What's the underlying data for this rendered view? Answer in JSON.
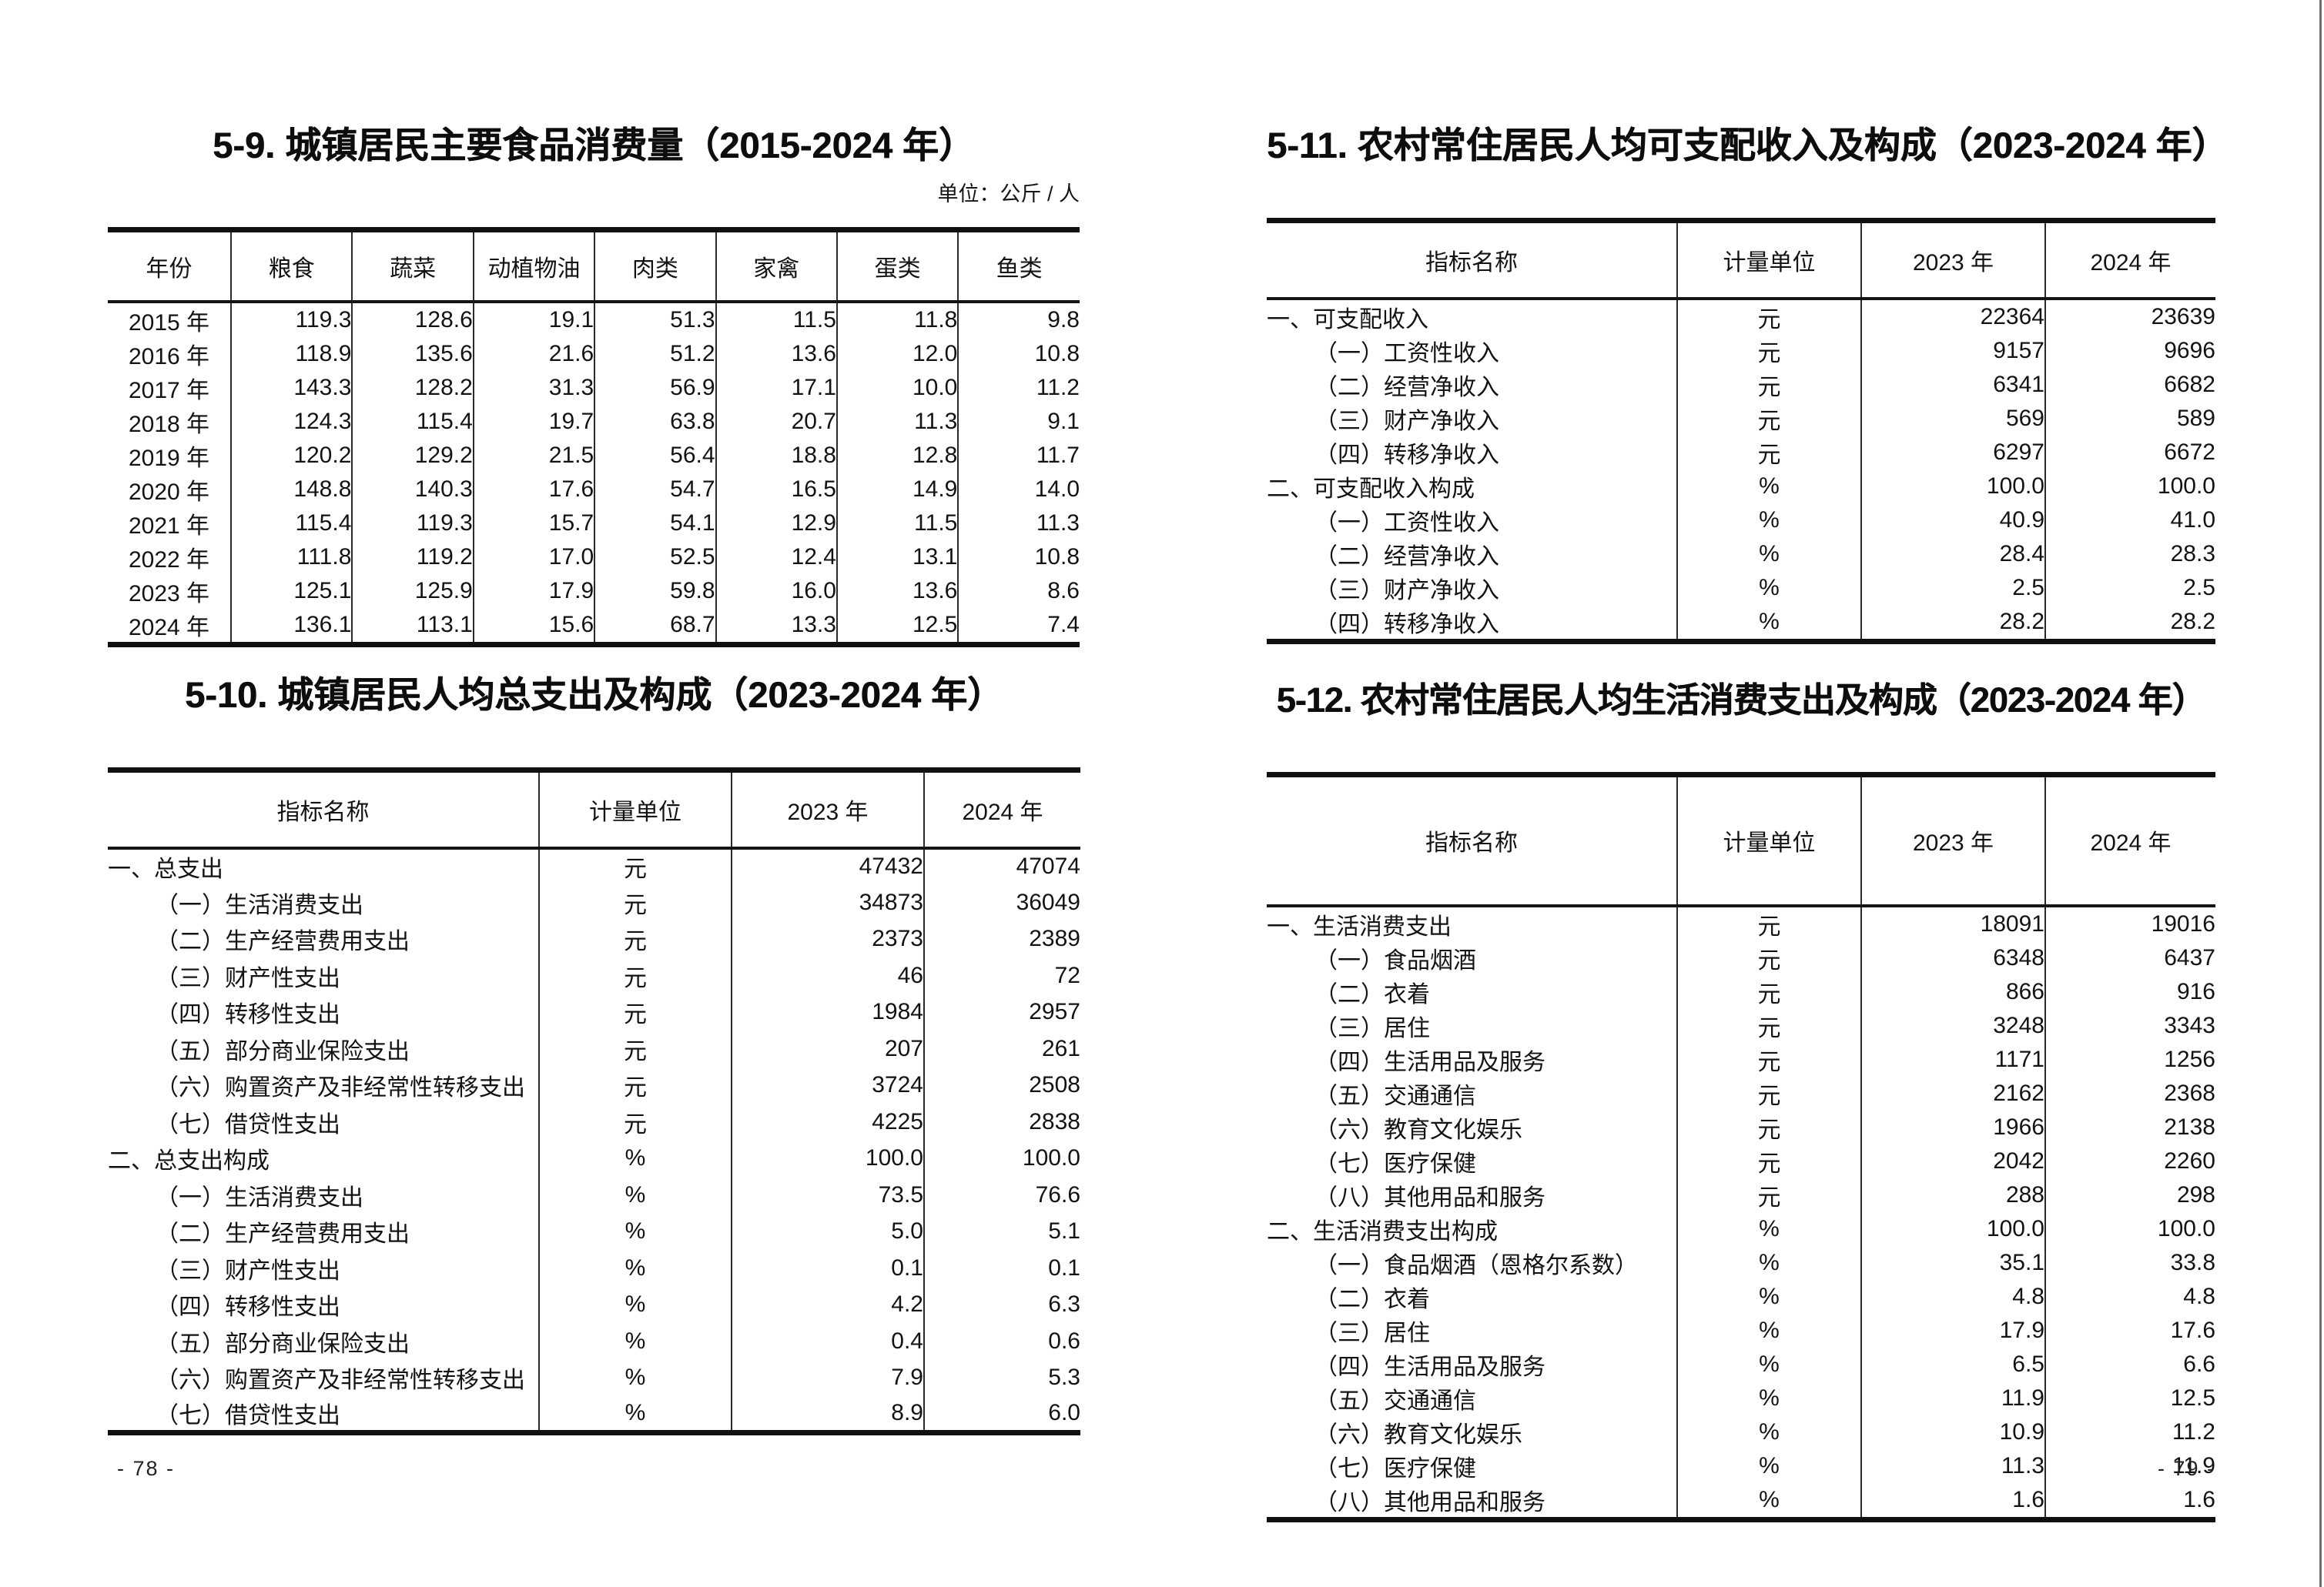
{
  "left_page": {
    "page_number": "- 78 -",
    "food_table": {
      "title": "5-9. 城镇居民主要食品消费量（2015-2024 年）",
      "unit_note": "单位：公斤 / 人",
      "columns": [
        "年份",
        "粮食",
        "蔬菜",
        "动植物油",
        "肉类",
        "家禽",
        "蛋类",
        "鱼类"
      ],
      "rows": [
        [
          "2015 年",
          "119.3",
          "128.6",
          "19.1",
          "51.3",
          "11.5",
          "11.8",
          "9.8"
        ],
        [
          "2016 年",
          "118.9",
          "135.6",
          "21.6",
          "51.2",
          "13.6",
          "12.0",
          "10.8"
        ],
        [
          "2017 年",
          "143.3",
          "128.2",
          "31.3",
          "56.9",
          "17.1",
          "10.0",
          "11.2"
        ],
        [
          "2018 年",
          "124.3",
          "115.4",
          "19.7",
          "63.8",
          "20.7",
          "11.3",
          "9.1"
        ],
        [
          "2019 年",
          "120.2",
          "129.2",
          "21.5",
          "56.4",
          "18.8",
          "12.8",
          "11.7"
        ],
        [
          "2020 年",
          "148.8",
          "140.3",
          "17.6",
          "54.7",
          "16.5",
          "14.9",
          "14.0"
        ],
        [
          "2021 年",
          "115.4",
          "119.3",
          "15.7",
          "54.1",
          "12.9",
          "11.5",
          "11.3"
        ],
        [
          "2022 年",
          "111.8",
          "119.2",
          "17.0",
          "52.5",
          "12.4",
          "13.1",
          "10.8"
        ],
        [
          "2023 年",
          "125.1",
          "125.9",
          "17.9",
          "59.8",
          "16.0",
          "13.6",
          "8.6"
        ],
        [
          "2024 年",
          "136.1",
          "113.1",
          "15.6",
          "68.7",
          "13.3",
          "12.5",
          "7.4"
        ]
      ]
    },
    "expenditure_table": {
      "title": "5-10. 城镇居民人均总支出及构成（2023-2024 年）",
      "columns": [
        "指标名称",
        "计量单位",
        "2023 年",
        "2024 年"
      ],
      "rows": [
        {
          "label": "一、总支出",
          "indent": 0,
          "unit": "元",
          "y2023": "47432",
          "y2024": "47074"
        },
        {
          "label": "（一）生活消费支出",
          "indent": 1,
          "unit": "元",
          "y2023": "34873",
          "y2024": "36049"
        },
        {
          "label": "（二）生产经营费用支出",
          "indent": 1,
          "unit": "元",
          "y2023": "2373",
          "y2024": "2389"
        },
        {
          "label": "（三）财产性支出",
          "indent": 1,
          "unit": "元",
          "y2023": "46",
          "y2024": "72"
        },
        {
          "label": "（四）转移性支出",
          "indent": 1,
          "unit": "元",
          "y2023": "1984",
          "y2024": "2957"
        },
        {
          "label": "（五）部分商业保险支出",
          "indent": 1,
          "unit": "元",
          "y2023": "207",
          "y2024": "261"
        },
        {
          "label": "（六）购置资产及非经常性转移支出",
          "indent": 1,
          "unit": "元",
          "y2023": "3724",
          "y2024": "2508"
        },
        {
          "label": "（七）借贷性支出",
          "indent": 1,
          "unit": "元",
          "y2023": "4225",
          "y2024": "2838"
        },
        {
          "label": "二、总支出构成",
          "indent": 0,
          "unit": "%",
          "y2023": "100.0",
          "y2024": "100.0"
        },
        {
          "label": "（一）生活消费支出",
          "indent": 1,
          "unit": "%",
          "y2023": "73.5",
          "y2024": "76.6"
        },
        {
          "label": "（二）生产经营费用支出",
          "indent": 1,
          "unit": "%",
          "y2023": "5.0",
          "y2024": "5.1"
        },
        {
          "label": "（三）财产性支出",
          "indent": 1,
          "unit": "%",
          "y2023": "0.1",
          "y2024": "0.1"
        },
        {
          "label": "（四）转移性支出",
          "indent": 1,
          "unit": "%",
          "y2023": "4.2",
          "y2024": "6.3"
        },
        {
          "label": "（五）部分商业保险支出",
          "indent": 1,
          "unit": "%",
          "y2023": "0.4",
          "y2024": "0.6"
        },
        {
          "label": "（六）购置资产及非经常性转移支出",
          "indent": 1,
          "unit": "%",
          "y2023": "7.9",
          "y2024": "5.3"
        },
        {
          "label": "（七）借贷性支出",
          "indent": 1,
          "unit": "%",
          "y2023": "8.9",
          "y2024": "6.0"
        }
      ]
    }
  },
  "right_page": {
    "page_number": "- 79 -",
    "income_table": {
      "title": "5-11. 农村常住居民人均可支配收入及构成（2023-2024 年）",
      "columns": [
        "指标名称",
        "计量单位",
        "2023 年",
        "2024 年"
      ],
      "rows": [
        {
          "label": "一、可支配收入",
          "indent": 0,
          "unit": "元",
          "y2023": "22364",
          "y2024": "23639"
        },
        {
          "label": "（一）工资性收入",
          "indent": 1,
          "unit": "元",
          "y2023": "9157",
          "y2024": "9696"
        },
        {
          "label": "（二）经营净收入",
          "indent": 1,
          "unit": "元",
          "y2023": "6341",
          "y2024": "6682"
        },
        {
          "label": "（三）财产净收入",
          "indent": 1,
          "unit": "元",
          "y2023": "569",
          "y2024": "589"
        },
        {
          "label": "（四）转移净收入",
          "indent": 1,
          "unit": "元",
          "y2023": "6297",
          "y2024": "6672"
        },
        {
          "label": "二、可支配收入构成",
          "indent": 0,
          "unit": "%",
          "y2023": "100.0",
          "y2024": "100.0"
        },
        {
          "label": "（一）工资性收入",
          "indent": 1,
          "unit": "%",
          "y2023": "40.9",
          "y2024": "41.0"
        },
        {
          "label": "（二）经营净收入",
          "indent": 1,
          "unit": "%",
          "y2023": "28.4",
          "y2024": "28.3"
        },
        {
          "label": "（三）财产净收入",
          "indent": 1,
          "unit": "%",
          "y2023": "2.5",
          "y2024": "2.5"
        },
        {
          "label": "（四）转移净收入",
          "indent": 1,
          "unit": "%",
          "y2023": "28.2",
          "y2024": "28.2"
        }
      ]
    },
    "consumption_table": {
      "title": "5-12. 农村常住居民人均生活消费支出及构成（2023-2024 年）",
      "columns": [
        "指标名称",
        "计量单位",
        "2023 年",
        "2024 年"
      ],
      "rows": [
        {
          "label": "一、生活消费支出",
          "indent": 0,
          "unit": "元",
          "y2023": "18091",
          "y2024": "19016"
        },
        {
          "label": "（一）食品烟酒",
          "indent": 1,
          "unit": "元",
          "y2023": "6348",
          "y2024": "6437"
        },
        {
          "label": "（二）衣着",
          "indent": 1,
          "unit": "元",
          "y2023": "866",
          "y2024": "916"
        },
        {
          "label": "（三）居住",
          "indent": 1,
          "unit": "元",
          "y2023": "3248",
          "y2024": "3343"
        },
        {
          "label": "（四）生活用品及服务",
          "indent": 1,
          "unit": "元",
          "y2023": "1171",
          "y2024": "1256"
        },
        {
          "label": "（五）交通通信",
          "indent": 1,
          "unit": "元",
          "y2023": "2162",
          "y2024": "2368"
        },
        {
          "label": "（六）教育文化娱乐",
          "indent": 1,
          "unit": "元",
          "y2023": "1966",
          "y2024": "2138"
        },
        {
          "label": "（七）医疗保健",
          "indent": 1,
          "unit": "元",
          "y2023": "2042",
          "y2024": "2260"
        },
        {
          "label": "（八）其他用品和服务",
          "indent": 1,
          "unit": "元",
          "y2023": "288",
          "y2024": "298"
        },
        {
          "label": "二、生活消费支出构成",
          "indent": 0,
          "unit": "%",
          "y2023": "100.0",
          "y2024": "100.0"
        },
        {
          "label": "（一）食品烟酒（恩格尔系数）",
          "indent": 1,
          "unit": "%",
          "y2023": "35.1",
          "y2024": "33.8"
        },
        {
          "label": "（二）衣着",
          "indent": 1,
          "unit": "%",
          "y2023": "4.8",
          "y2024": "4.8"
        },
        {
          "label": "（三）居住",
          "indent": 1,
          "unit": "%",
          "y2023": "17.9",
          "y2024": "17.6"
        },
        {
          "label": "（四）生活用品及服务",
          "indent": 1,
          "unit": "%",
          "y2023": "6.5",
          "y2024": "6.6"
        },
        {
          "label": "（五）交通通信",
          "indent": 1,
          "unit": "%",
          "y2023": "11.9",
          "y2024": "12.5"
        },
        {
          "label": "（六）教育文化娱乐",
          "indent": 1,
          "unit": "%",
          "y2023": "10.9",
          "y2024": "11.2"
        },
        {
          "label": "（七）医疗保健",
          "indent": 1,
          "unit": "%",
          "y2023": "11.3",
          "y2024": "11.9"
        },
        {
          "label": "（八）其他用品和服务",
          "indent": 1,
          "unit": "%",
          "y2023": "1.6",
          "y2024": "1.6"
        }
      ]
    }
  }
}
